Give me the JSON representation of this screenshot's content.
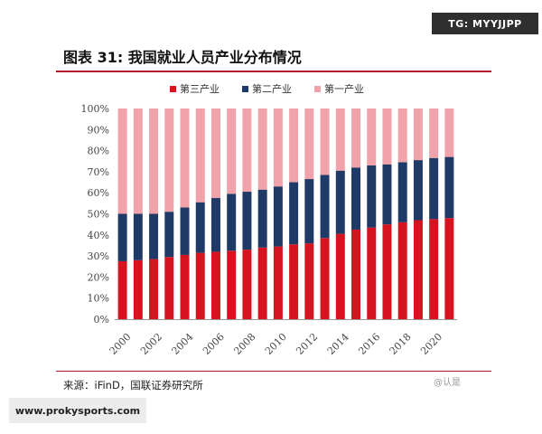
{
  "watermark_top": "TG: MYYJJPP",
  "title": "图表 31:  我国就业人员产业分布情况",
  "source": "来源：iFinD，国联证券研究所",
  "corner_mark": "@认是",
  "watermark_bottom": "www.prokysports.com",
  "chart_data": {
    "type": "bar",
    "stacked": true,
    "categories": [
      "2000",
      "2001",
      "2002",
      "2003",
      "2004",
      "2005",
      "2006",
      "2007",
      "2008",
      "2009",
      "2010",
      "2011",
      "2012",
      "2013",
      "2014",
      "2015",
      "2016",
      "2017",
      "2018",
      "2019",
      "2020",
      "2021"
    ],
    "x_tick_labels": [
      "2000",
      "2002",
      "2004",
      "2006",
      "2008",
      "2010",
      "2012",
      "2014",
      "2016",
      "2018",
      "2020"
    ],
    "y_tick_labels": [
      "0%",
      "10%",
      "20%",
      "30%",
      "40%",
      "50%",
      "60%",
      "70%",
      "80%",
      "90%",
      "100%"
    ],
    "ylim": [
      0,
      100
    ],
    "legend_position": "top",
    "series": [
      {
        "name": "第三产业",
        "color": "#d5141f",
        "values": [
          27.5,
          28.0,
          28.5,
          29.5,
          30.5,
          31.5,
          32.0,
          32.5,
          33.0,
          34.0,
          34.5,
          35.5,
          36.0,
          38.5,
          40.5,
          42.5,
          43.5,
          45.0,
          46.0,
          47.0,
          47.5,
          48.0
        ]
      },
      {
        "name": "第二产业",
        "color": "#1f3a66",
        "values": [
          22.5,
          22.0,
          21.5,
          21.5,
          22.5,
          24.0,
          25.5,
          27.0,
          27.5,
          27.5,
          28.5,
          29.5,
          30.5,
          30.0,
          30.0,
          29.5,
          29.5,
          28.5,
          28.5,
          28.5,
          29.0,
          29.0
        ]
      },
      {
        "name": "第一产业",
        "color": "#f0a3aa",
        "values": [
          50.0,
          50.0,
          50.0,
          49.0,
          47.0,
          44.5,
          42.5,
          40.5,
          39.5,
          38.5,
          37.0,
          35.0,
          33.5,
          31.5,
          29.5,
          28.0,
          27.0,
          26.5,
          25.5,
          24.5,
          23.5,
          23.0
        ]
      }
    ]
  }
}
